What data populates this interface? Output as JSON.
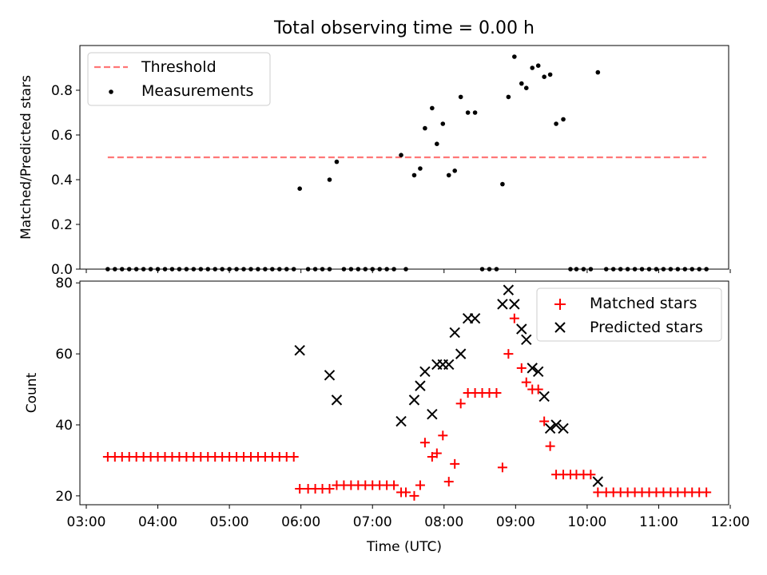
{
  "chart_data": [
    {
      "type": "scatter",
      "title": "Total observing time = 0.00 h",
      "ylabel": "Matched/Predicted stars",
      "xlabel": "",
      "xlim": [
        "03:00",
        "12:00"
      ],
      "ylim": [
        0,
        1.0
      ],
      "yticks": [
        0.0,
        0.2,
        0.4,
        0.6,
        0.8
      ],
      "legend": "top-left",
      "threshold": {
        "name": "Threshold",
        "value": 0.5,
        "x_range": [
          "03:18",
          "11:40"
        ],
        "color": "#ff7777",
        "style": "dashed"
      },
      "series": [
        {
          "name": "Measurements",
          "color": "#000000",
          "marker": "dot",
          "points": [
            [
              "03:18",
              0
            ],
            [
              "03:24",
              0
            ],
            [
              "03:30",
              0
            ],
            [
              "03:36",
              0
            ],
            [
              "03:42",
              0
            ],
            [
              "03:48",
              0
            ],
            [
              "03:54",
              0
            ],
            [
              "04:00",
              0
            ],
            [
              "04:06",
              0
            ],
            [
              "04:12",
              0
            ],
            [
              "04:18",
              0
            ],
            [
              "04:24",
              0
            ],
            [
              "04:30",
              0
            ],
            [
              "04:36",
              0
            ],
            [
              "04:42",
              0
            ],
            [
              "04:48",
              0
            ],
            [
              "04:54",
              0
            ],
            [
              "05:00",
              0
            ],
            [
              "05:06",
              0
            ],
            [
              "05:12",
              0
            ],
            [
              "05:18",
              0
            ],
            [
              "05:24",
              0
            ],
            [
              "05:30",
              0
            ],
            [
              "05:36",
              0
            ],
            [
              "05:42",
              0
            ],
            [
              "05:48",
              0
            ],
            [
              "05:54",
              0
            ],
            [
              "05:59",
              0.36
            ],
            [
              "06:06",
              0
            ],
            [
              "06:12",
              0
            ],
            [
              "06:18",
              0
            ],
            [
              "06:24",
              0
            ],
            [
              "06:24",
              0.4
            ],
            [
              "06:30",
              0.48
            ],
            [
              "06:36",
              0
            ],
            [
              "06:42",
              0
            ],
            [
              "06:48",
              0
            ],
            [
              "06:54",
              0
            ],
            [
              "07:00",
              0
            ],
            [
              "07:06",
              0
            ],
            [
              "07:12",
              0
            ],
            [
              "07:18",
              0
            ],
            [
              "07:24",
              0.51
            ],
            [
              "07:28",
              0
            ],
            [
              "07:35",
              0.42
            ],
            [
              "07:40",
              0.45
            ],
            [
              "07:44",
              0.63
            ],
            [
              "07:50",
              0.72
            ],
            [
              "07:54",
              0.56
            ],
            [
              "07:59",
              0.65
            ],
            [
              "08:04",
              0.42
            ],
            [
              "08:09",
              0.44
            ],
            [
              "08:14",
              0.77
            ],
            [
              "08:20",
              0.7
            ],
            [
              "08:26",
              0.7
            ],
            [
              "08:32",
              0
            ],
            [
              "08:38",
              0
            ],
            [
              "08:44",
              0
            ],
            [
              "08:49",
              0.38
            ],
            [
              "08:54",
              0.77
            ],
            [
              "08:59",
              0.95
            ],
            [
              "09:05",
              0.83
            ],
            [
              "09:09",
              0.81
            ],
            [
              "09:14",
              0.9
            ],
            [
              "09:19",
              0.91
            ],
            [
              "09:24",
              0.86
            ],
            [
              "09:29",
              0.87
            ],
            [
              "09:34",
              0.65
            ],
            [
              "09:40",
              0.67
            ],
            [
              "09:46",
              0
            ],
            [
              "09:51",
              0
            ],
            [
              "09:57",
              0
            ],
            [
              "10:03",
              0
            ],
            [
              "10:09",
              0.88
            ],
            [
              "10:16",
              0
            ],
            [
              "10:22",
              0
            ],
            [
              "10:28",
              0
            ],
            [
              "10:34",
              0
            ],
            [
              "10:40",
              0
            ],
            [
              "10:46",
              0
            ],
            [
              "10:52",
              0
            ],
            [
              "10:58",
              0
            ],
            [
              "11:04",
              0
            ],
            [
              "11:10",
              0
            ],
            [
              "11:16",
              0
            ],
            [
              "11:22",
              0
            ],
            [
              "11:28",
              0
            ],
            [
              "11:34",
              0
            ],
            [
              "11:40",
              0
            ]
          ]
        }
      ]
    },
    {
      "type": "scatter",
      "title": "",
      "ylabel": "Count",
      "xlabel": "Time (UTC)",
      "xlim": [
        "03:00",
        "12:00"
      ],
      "ylim": [
        17.5,
        80.5
      ],
      "yticks": [
        20,
        40,
        60,
        80
      ],
      "xticks": [
        "03:00",
        "04:00",
        "05:00",
        "06:00",
        "07:00",
        "08:00",
        "09:00",
        "10:00",
        "11:00",
        "12:00"
      ],
      "legend": "top-right",
      "series": [
        {
          "name": "Matched stars",
          "color": "#ff0000",
          "marker": "plus",
          "points": [
            [
              "03:18",
              31
            ],
            [
              "03:24",
              31
            ],
            [
              "03:30",
              31
            ],
            [
              "03:36",
              31
            ],
            [
              "03:42",
              31
            ],
            [
              "03:48",
              31
            ],
            [
              "03:54",
              31
            ],
            [
              "04:00",
              31
            ],
            [
              "04:06",
              31
            ],
            [
              "04:12",
              31
            ],
            [
              "04:18",
              31
            ],
            [
              "04:24",
              31
            ],
            [
              "04:30",
              31
            ],
            [
              "04:36",
              31
            ],
            [
              "04:42",
              31
            ],
            [
              "04:48",
              31
            ],
            [
              "04:54",
              31
            ],
            [
              "05:00",
              31
            ],
            [
              "05:06",
              31
            ],
            [
              "05:12",
              31
            ],
            [
              "05:18",
              31
            ],
            [
              "05:24",
              31
            ],
            [
              "05:30",
              31
            ],
            [
              "05:36",
              31
            ],
            [
              "05:42",
              31
            ],
            [
              "05:48",
              31
            ],
            [
              "05:54",
              31
            ],
            [
              "05:59",
              22
            ],
            [
              "06:06",
              22
            ],
            [
              "06:12",
              22
            ],
            [
              "06:18",
              22
            ],
            [
              "06:24",
              22
            ],
            [
              "06:30",
              23
            ],
            [
              "06:36",
              23
            ],
            [
              "06:42",
              23
            ],
            [
              "06:48",
              23
            ],
            [
              "06:54",
              23
            ],
            [
              "07:00",
              23
            ],
            [
              "07:06",
              23
            ],
            [
              "07:12",
              23
            ],
            [
              "07:18",
              23
            ],
            [
              "07:24",
              21
            ],
            [
              "07:28",
              21
            ],
            [
              "07:35",
              20
            ],
            [
              "07:40",
              23
            ],
            [
              "07:44",
              35
            ],
            [
              "07:50",
              31
            ],
            [
              "07:54",
              32
            ],
            [
              "07:59",
              37
            ],
            [
              "08:04",
              24
            ],
            [
              "08:09",
              29
            ],
            [
              "08:14",
              46
            ],
            [
              "08:20",
              49
            ],
            [
              "08:26",
              49
            ],
            [
              "08:32",
              49
            ],
            [
              "08:38",
              49
            ],
            [
              "08:44",
              49
            ],
            [
              "08:49",
              28
            ],
            [
              "08:54",
              60
            ],
            [
              "08:59",
              70
            ],
            [
              "09:05",
              56
            ],
            [
              "09:09",
              52
            ],
            [
              "09:14",
              50
            ],
            [
              "09:19",
              50
            ],
            [
              "09:24",
              41
            ],
            [
              "09:29",
              34
            ],
            [
              "09:34",
              26
            ],
            [
              "09:40",
              26
            ],
            [
              "09:46",
              26
            ],
            [
              "09:51",
              26
            ],
            [
              "09:57",
              26
            ],
            [
              "10:03",
              26
            ],
            [
              "10:09",
              21
            ],
            [
              "10:16",
              21
            ],
            [
              "10:22",
              21
            ],
            [
              "10:28",
              21
            ],
            [
              "10:34",
              21
            ],
            [
              "10:40",
              21
            ],
            [
              "10:46",
              21
            ],
            [
              "10:52",
              21
            ],
            [
              "10:58",
              21
            ],
            [
              "11:04",
              21
            ],
            [
              "11:10",
              21
            ],
            [
              "11:16",
              21
            ],
            [
              "11:22",
              21
            ],
            [
              "11:28",
              21
            ],
            [
              "11:34",
              21
            ],
            [
              "11:40",
              21
            ]
          ]
        },
        {
          "name": "Predicted stars",
          "color": "#000000",
          "marker": "x",
          "points": [
            [
              "05:59",
              61
            ],
            [
              "06:24",
              54
            ],
            [
              "06:30",
              47
            ],
            [
              "07:24",
              41
            ],
            [
              "07:35",
              47
            ],
            [
              "07:40",
              51
            ],
            [
              "07:44",
              55
            ],
            [
              "07:50",
              43
            ],
            [
              "07:54",
              57
            ],
            [
              "07:59",
              57
            ],
            [
              "08:04",
              57
            ],
            [
              "08:09",
              66
            ],
            [
              "08:14",
              60
            ],
            [
              "08:20",
              70
            ],
            [
              "08:26",
              70
            ],
            [
              "08:49",
              74
            ],
            [
              "08:54",
              78
            ],
            [
              "08:59",
              74
            ],
            [
              "09:05",
              67
            ],
            [
              "09:09",
              64
            ],
            [
              "09:14",
              56
            ],
            [
              "09:19",
              55
            ],
            [
              "09:24",
              48
            ],
            [
              "09:29",
              39
            ],
            [
              "09:34",
              40
            ],
            [
              "09:40",
              39
            ],
            [
              "10:09",
              24
            ]
          ]
        }
      ]
    }
  ]
}
